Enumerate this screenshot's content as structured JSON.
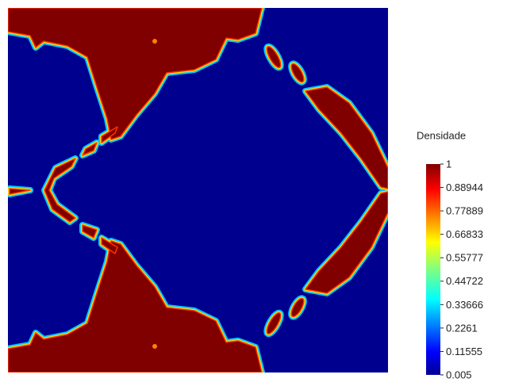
{
  "chart_data": {
    "type": "heatmap",
    "colormap": "jet",
    "colorbar": {
      "title": "Densidade",
      "lim": [
        0.005,
        1
      ],
      "ticks": [
        1,
        0.88944,
        0.77889,
        0.66833,
        0.55777,
        0.44722,
        0.33666,
        0.2261,
        0.11555,
        0.005
      ]
    }
  }
}
